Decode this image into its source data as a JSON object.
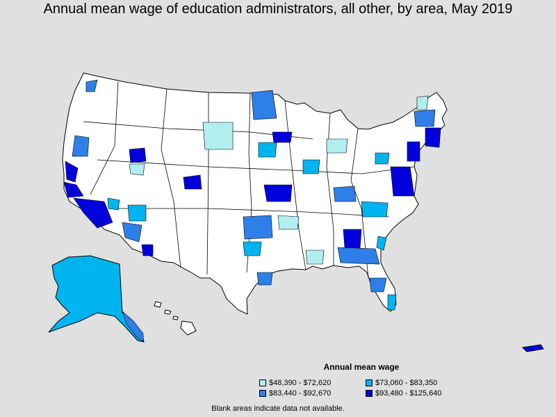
{
  "title": "Annual mean wage of education administrators, all other, by area, May 2019",
  "legend": {
    "title": "Annual mean wage",
    "items": [
      {
        "label": "$48,390 - $72,620",
        "color": "#b0eef0"
      },
      {
        "label": "$73,060 - $83,350",
        "color": "#00b4f0"
      },
      {
        "label": "$83,440 - $92,670",
        "color": "#2e7fe8"
      },
      {
        "label": "$93,480 - $125,640",
        "color": "#0000dd"
      }
    ]
  },
  "note": "Blank areas indicate data not available.",
  "colors": {
    "background": "#e0e0e0",
    "blank": "#ffffff",
    "border": "#000000"
  }
}
